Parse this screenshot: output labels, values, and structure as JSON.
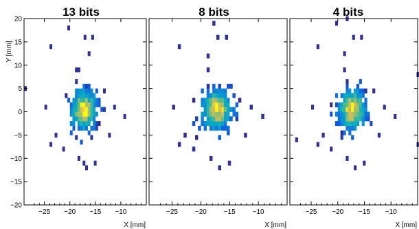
{
  "chart_data": {
    "type": "heatmap",
    "colormap": "parula",
    "shared_ylabel": "Y [mm]",
    "xlim": [
      -29,
      -5
    ],
    "ylim": [
      -20,
      20
    ],
    "xticks": [
      -25,
      -20,
      -15,
      -10
    ],
    "yticks": [
      -20,
      -15,
      -10,
      -5,
      0,
      5,
      10,
      15,
      20
    ],
    "tick_labels_x": [
      "−25",
      "−20",
      "−15",
      "−10"
    ],
    "tick_labels_y": [
      "−20",
      "−15",
      "−10",
      "−5",
      "0",
      "5",
      "10",
      "15",
      "20"
    ],
    "core_center_x": -17.5,
    "core_center_y": 0.0,
    "core_sigma_x": 1.8,
    "core_sigma_y": 3.0,
    "panels": [
      {
        "title": "13 bits",
        "xlabel": "X [mm]",
        "show_y_ticklabels": true,
        "outliers": [
          [
            -20.5,
            17.5
          ],
          [
            -17.3,
            15.5
          ],
          [
            -15.8,
            15.5
          ],
          [
            -24,
            13.5
          ],
          [
            -16.5,
            12
          ],
          [
            -19,
            8.5
          ],
          [
            -18.5,
            8.5
          ],
          [
            -29,
            4.5
          ],
          [
            -25,
            0.5
          ],
          [
            -11.5,
            0.5
          ],
          [
            -9.5,
            -1.5
          ],
          [
            -23,
            -5.5
          ],
          [
            -24,
            -7.5
          ],
          [
            -21.5,
            -8.5
          ],
          [
            -12.5,
            -5.5
          ],
          [
            -18.5,
            -10.5
          ],
          [
            -17.5,
            -11.5
          ],
          [
            -15.3,
            -11.5
          ],
          [
            -17,
            -12.5
          ]
        ]
      },
      {
        "title": "8 bits",
        "xlabel": "X [mm]",
        "show_y_ticklabels": false,
        "outliers": [
          [
            -18,
            18.5
          ],
          [
            -15.8,
            15.5
          ],
          [
            -17.3,
            15.5
          ],
          [
            -24,
            13.5
          ],
          [
            -19,
            11.5
          ],
          [
            -19,
            8.5
          ],
          [
            -25,
            0.5
          ],
          [
            -11.5,
            0.5
          ],
          [
            -9.5,
            -1.5
          ],
          [
            -23,
            -5.5
          ],
          [
            -24,
            -7.5
          ],
          [
            -21.5,
            -8.5
          ],
          [
            -12.5,
            -5.5
          ],
          [
            -18.5,
            -10.5
          ],
          [
            -15.3,
            -11.5
          ],
          [
            -17,
            -12.5
          ]
        ]
      },
      {
        "title": "4 bits",
        "xlabel": "X [mm]",
        "show_y_ticklabels": false,
        "outliers": [
          [
            -20.5,
            18.5
          ],
          [
            -18.5,
            19.5
          ],
          [
            -15.8,
            15.5
          ],
          [
            -17.3,
            15.5
          ],
          [
            -24,
            13.5
          ],
          [
            -19,
            12
          ],
          [
            -19,
            8.5
          ],
          [
            -5.2,
            7.5
          ],
          [
            -25,
            0.5
          ],
          [
            -11.5,
            0.5
          ],
          [
            -9.5,
            -1.5
          ],
          [
            -23,
            -5.5
          ],
          [
            -28,
            -6.5
          ],
          [
            -24,
            -7.5
          ],
          [
            -21.5,
            -8.5
          ],
          [
            -5.2,
            -7.5
          ],
          [
            -12.5,
            -5.5
          ],
          [
            -18.5,
            -10.5
          ],
          [
            -15.3,
            -11.5
          ],
          [
            -17,
            -12.5
          ]
        ]
      }
    ]
  }
}
